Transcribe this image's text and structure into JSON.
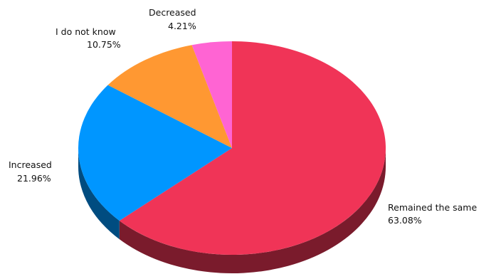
{
  "chart_data": {
    "type": "pie",
    "title": "",
    "style": "3d",
    "slices": [
      {
        "label": "Remained the same",
        "value_label": "63.08%",
        "value": 63.08,
        "color": "#F03457",
        "side_color": "#7A1B2C"
      },
      {
        "label": "Increased",
        "value_label": "21.96%",
        "value": 21.96,
        "color": "#0096FF",
        "side_color": "#004C80"
      },
      {
        "label": "I do not know",
        "value_label": "10.75%",
        "value": 10.75,
        "color": "#FF9832",
        "side_color": "#804C19"
      },
      {
        "label": "Decreased",
        "value_label": "4.21%",
        "value": 4.21,
        "color": "#FF64D3",
        "side_color": "#80326A"
      }
    ]
  }
}
